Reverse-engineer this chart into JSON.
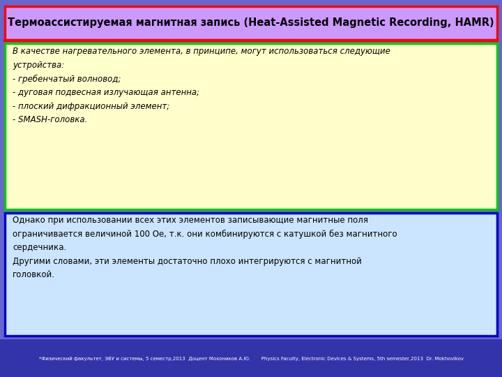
{
  "title": "Термоассистируемая магнитная запись (Heat-Assisted Magnetic Recording, HAMR)",
  "title_bg": "#cc99ff",
  "title_border": "#ff0000",
  "slide_bg": "#6666cc",
  "top_box_bg": "#ffffcc",
  "top_box_border": "#00cc00",
  "top_box_text": "В качестве нагревательного элемента, в принципе, могут использоваться следующие\nустройства:\n- гребенчатый волновод;\n- дуговая подвесная излучающая антенна;\n- плоский дифракционный элемент;\n- SMASH-головка.",
  "bottom_box_bg": "#cce5ff",
  "bottom_box_border": "#0000cc",
  "bottom_box_text": "Однако при использовании всех этих элементов записывающие магнитные поля\nограничивается величиной 100 Ое, т.к. они комбинируются с катушкой без магнитного\nсердечника.\nДругими словами, эти элементы достаточно плохо интегрируются с магнитной\nголовкой.",
  "footer_text": "*Физический факультет, ЭВУ и системы, 5 семестр,2013  Доцент Мохоников А.Ю.       Physics Faculty, Electronic Devices & Systems, 5th semester,2013  Dr. Mokhovikov",
  "footer_bg": "#3333aa",
  "footer_color": "#ffffff"
}
